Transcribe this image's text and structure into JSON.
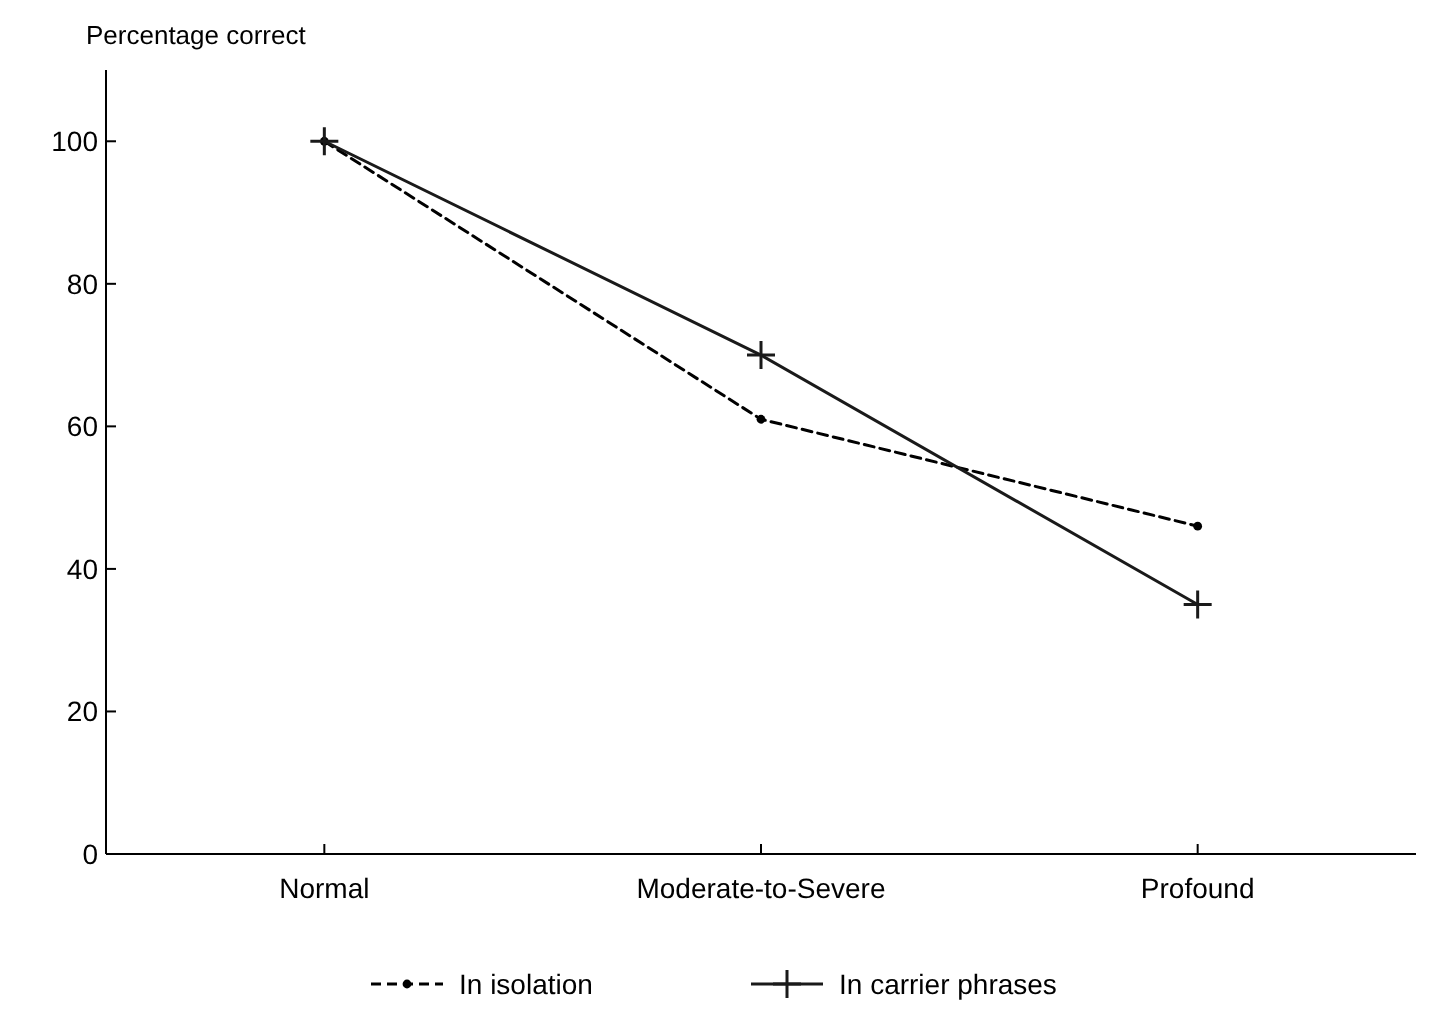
{
  "chart_data": {
    "type": "line",
    "ylabel": "Percentage correct",
    "categories": [
      "Normal",
      "Moderate-to-Severe",
      "Profound"
    ],
    "series": [
      {
        "name": "In isolation",
        "color": "#000000",
        "values": [
          100,
          61,
          46
        ],
        "line_style": "dashed",
        "marker": "circle"
      },
      {
        "name": "In carrier phrases",
        "color": "#1a1a1a",
        "values": [
          100,
          70,
          35
        ],
        "line_style": "solid",
        "marker": "cross"
      }
    ],
    "ylim": [
      0,
      110
    ],
    "yticks": [
      0,
      20,
      40,
      60,
      80,
      100
    ],
    "grid": false,
    "legend": "bottom"
  }
}
